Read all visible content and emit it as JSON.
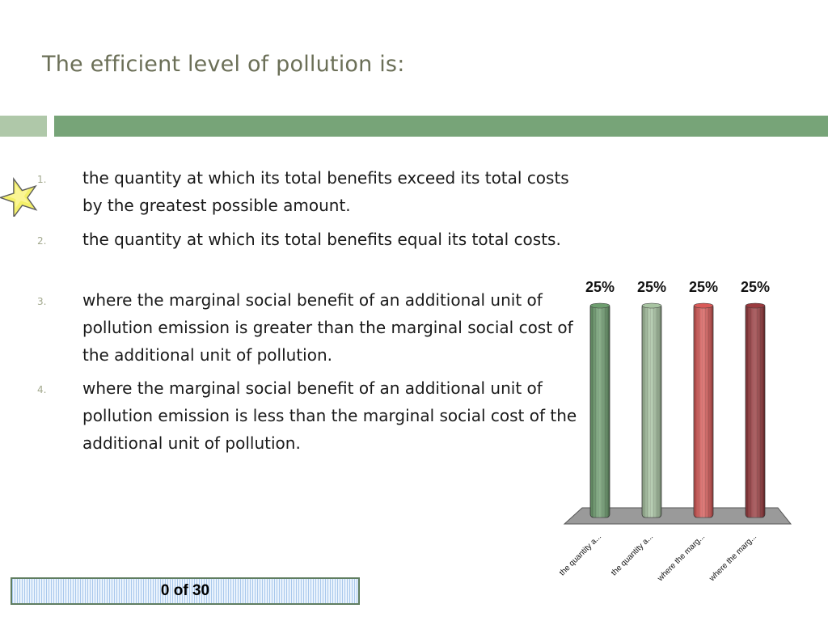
{
  "slide": {
    "title": "The efficient level of pollution is:"
  },
  "options": [
    {
      "number": "1.",
      "text": "the quantity at which its total benefits exceed its total costs by the greatest possible amount."
    },
    {
      "number": "2.",
      "text": "the quantity at which its total benefits equal its total costs."
    },
    {
      "number": "3.",
      "text": "where the marginal social benefit of an additional unit of pollution emission is greater than the marginal social cost of the additional unit of pollution."
    },
    {
      "number": "4.",
      "text": "where the marginal social benefit of an additional unit of pollution emission is less than the marginal social cost of the additional unit of pollution."
    }
  ],
  "correct_marker": {
    "icon": "star-icon",
    "option_index": 0
  },
  "response_counter": {
    "text": "0 of 30"
  },
  "chart_data": {
    "type": "bar",
    "categories": [
      "the quantity a...",
      "the quantity a...",
      "where the marg...",
      "where the marg..."
    ],
    "values": [
      25,
      25,
      25,
      25
    ],
    "value_labels": [
      "25%",
      "25%",
      "25%",
      "25%"
    ],
    "unit": "%",
    "ylim": [
      0,
      25
    ],
    "grid": false,
    "legend": "none",
    "colors": [
      "#6e9e6f",
      "#a8c4a2",
      "#d95a58",
      "#9a3a3e"
    ]
  }
}
